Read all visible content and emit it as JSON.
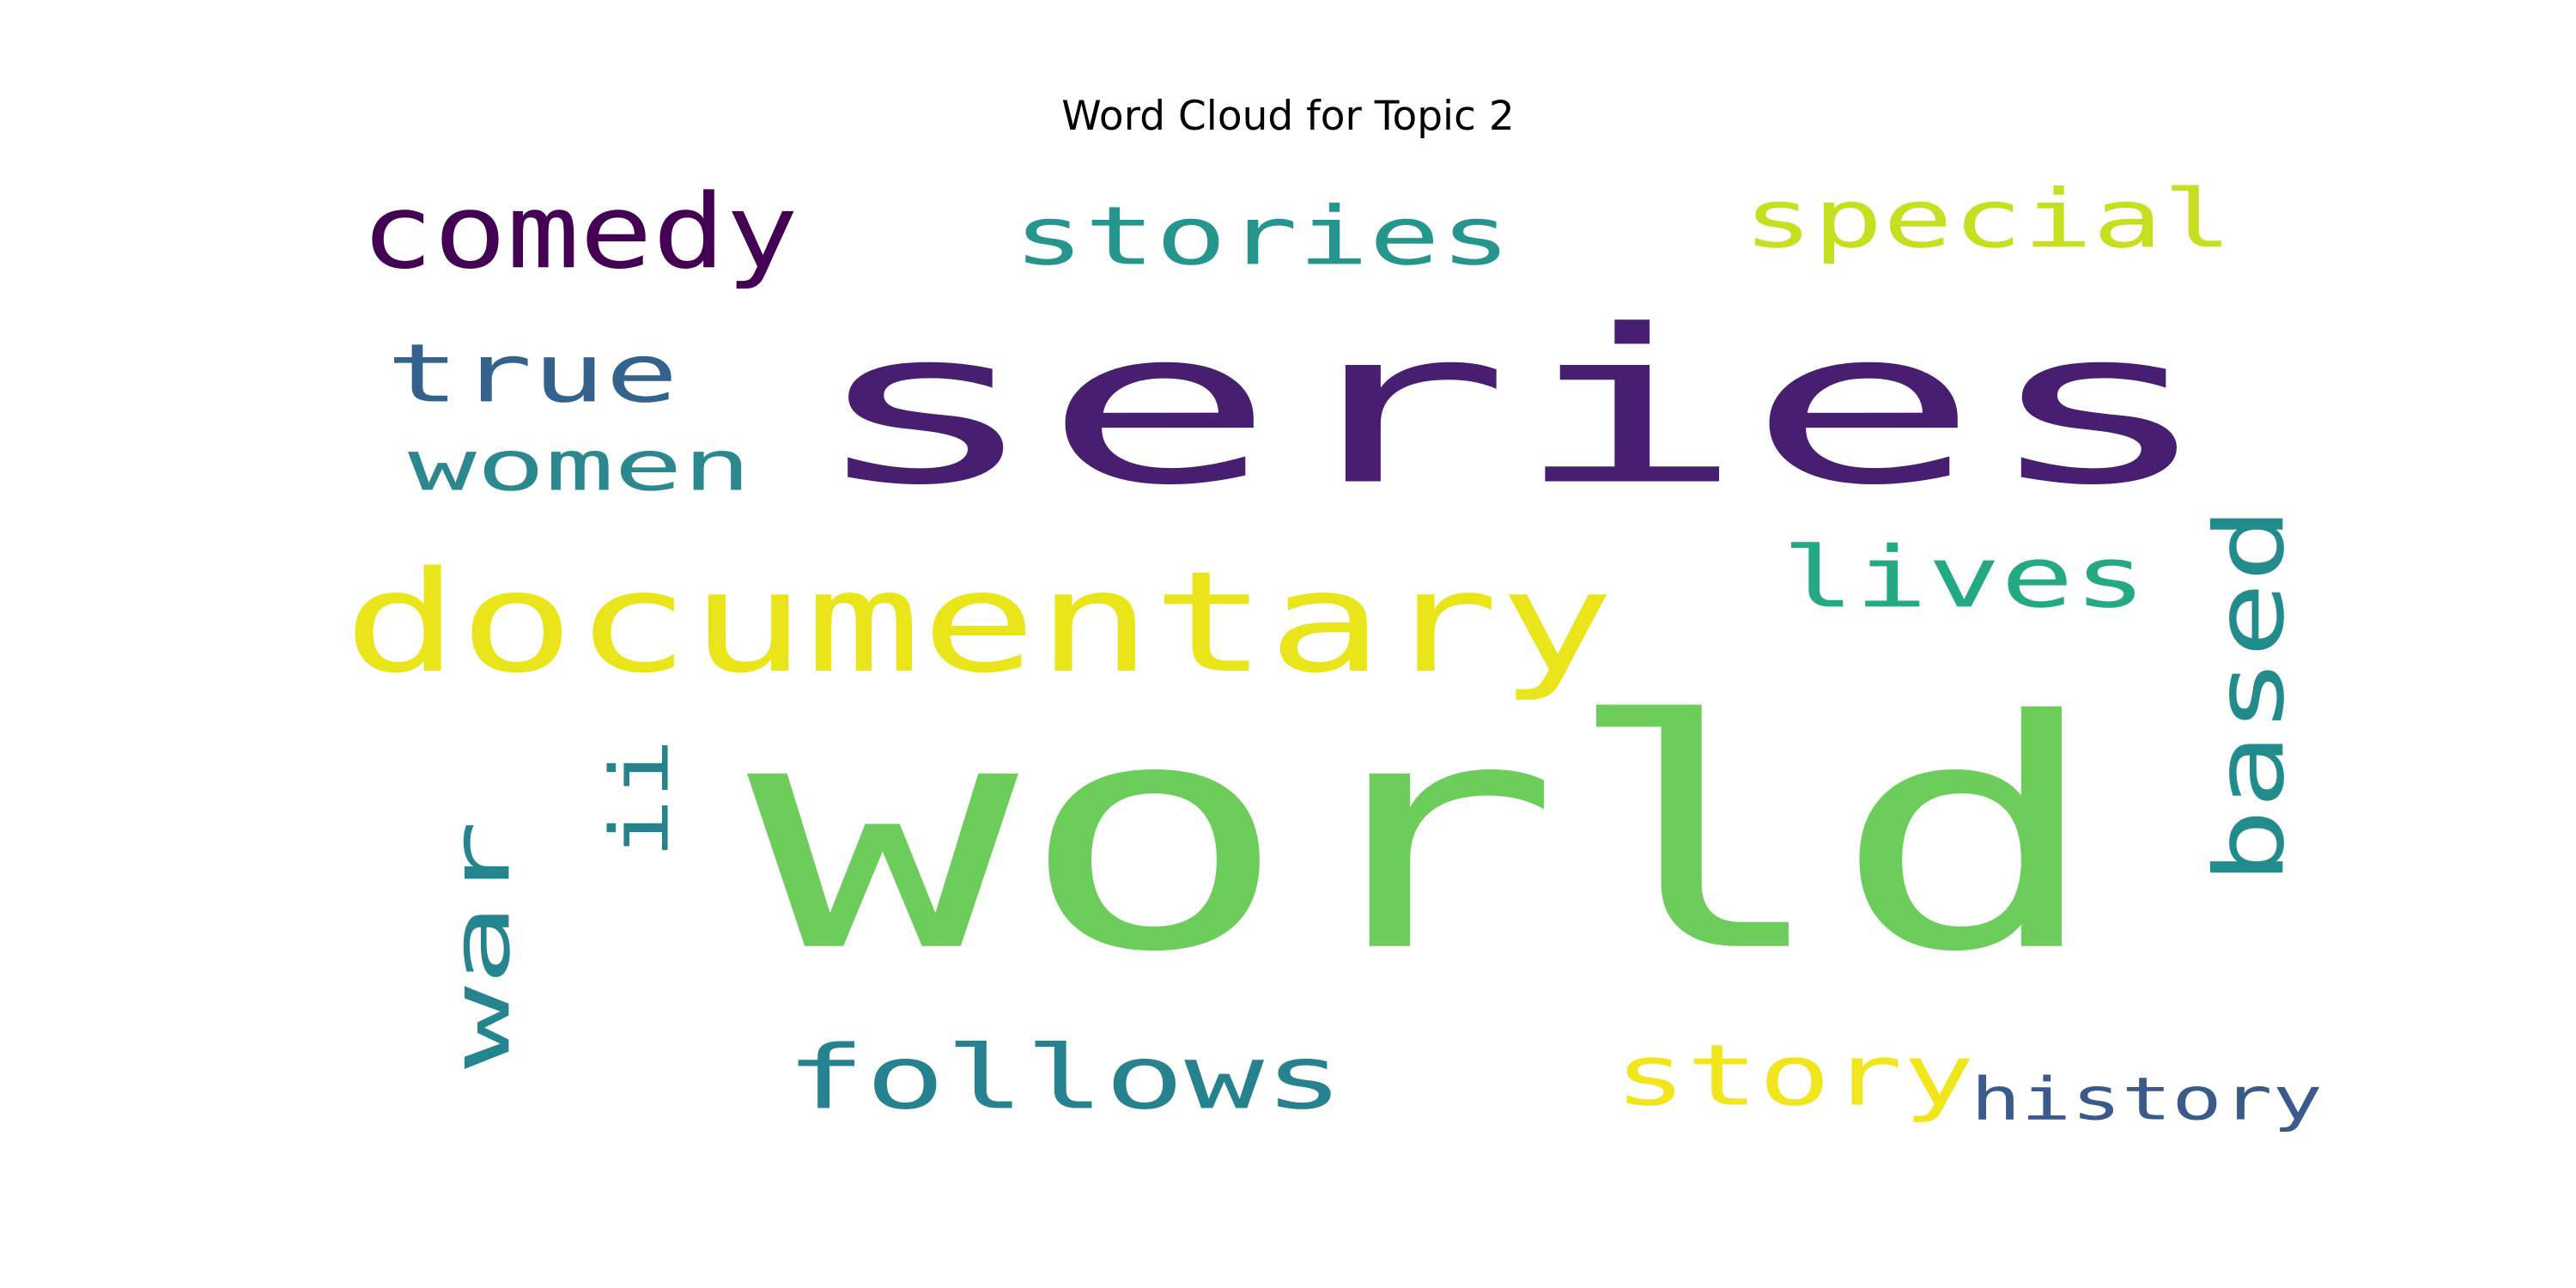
{
  "figure": {
    "title": "Word Cloud for Topic 2"
  },
  "word_cloud": {
    "words": [
      {
        "id": "series",
        "text": "series",
        "color": "#481f70"
      },
      {
        "id": "world",
        "text": "world",
        "color": "#6ccd5a"
      },
      {
        "id": "documentary",
        "text": "documentary",
        "color": "#e9e51a"
      },
      {
        "id": "comedy",
        "text": "comedy",
        "color": "#440154"
      },
      {
        "id": "stories",
        "text": "stories",
        "color": "#26958d"
      },
      {
        "id": "special",
        "text": "special",
        "color": "#c5e021"
      },
      {
        "id": "true",
        "text": "true",
        "color": "#33638d"
      },
      {
        "id": "women",
        "text": "women",
        "color": "#2a888e"
      },
      {
        "id": "lives",
        "text": "lives",
        "color": "#23a983"
      },
      {
        "id": "based",
        "text": "based",
        "color": "#228c8d",
        "vertical": true
      },
      {
        "id": "war",
        "text": "war",
        "color": "#25858e",
        "vertical": true
      },
      {
        "id": "ii",
        "text": "ii",
        "color": "#25838e",
        "vertical": true
      },
      {
        "id": "follows",
        "text": "follows",
        "color": "#26828e"
      },
      {
        "id": "story",
        "text": "story",
        "color": "#f1e51d"
      },
      {
        "id": "history",
        "text": "history",
        "color": "#3b5a8c"
      }
    ]
  }
}
